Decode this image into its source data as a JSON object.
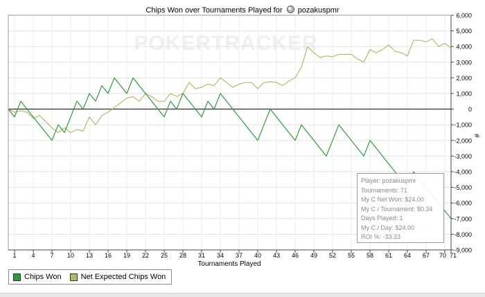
{
  "chart_data": {
    "type": "line",
    "title": "Chips Won over Tournaments Played for pozakuspmr",
    "title_prefix": "Chips Won over Tournaments Played for",
    "player": "pozakuspmr",
    "watermark": "POKERTRACKER",
    "xlabel": "Tournaments Played",
    "ylabel": "#",
    "x_ticks": [
      "1",
      "4",
      "7",
      "10",
      "13",
      "16",
      "19",
      "22",
      "25",
      "28",
      "31",
      "34",
      "37",
      "40",
      "43",
      "46",
      "49",
      "52",
      "55",
      "58",
      "61",
      "64",
      "67",
      "70",
      "71"
    ],
    "xlim": [
      0,
      71
    ],
    "ylim": [
      -9000,
      6000
    ],
    "y_ticks": [
      "6,000",
      "5,000",
      "4,000",
      "3,000",
      "2,000",
      "1,000",
      "0",
      "-1,000",
      "-2,000",
      "-3,000",
      "-4,000",
      "-5,000",
      "-6,000",
      "-7,000",
      "-8,000",
      "-9,000"
    ],
    "y_tick_values": [
      6000,
      5000,
      4000,
      3000,
      2000,
      1000,
      0,
      -1000,
      -2000,
      -3000,
      -4000,
      -5000,
      -6000,
      -7000,
      -8000,
      -9000
    ],
    "grid": true,
    "legend_position": "bottom-left",
    "colors": {
      "chips_won": "#2e9b3a",
      "net_expected": "#b5b86a",
      "zero_line": "#000000"
    },
    "series": [
      {
        "name": "Chips Won",
        "x": [
          0,
          1,
          2,
          3,
          4,
          5,
          6,
          7,
          8,
          9,
          10,
          11,
          12,
          13,
          14,
          15,
          16,
          17,
          18,
          19,
          20,
          21,
          22,
          23,
          24,
          25,
          26,
          27,
          28,
          29,
          30,
          31,
          32,
          33,
          34,
          35,
          36,
          37,
          38,
          39,
          40,
          41,
          42,
          43,
          44,
          45,
          46,
          47,
          48,
          49,
          50,
          51,
          52,
          53,
          54,
          55,
          56,
          57,
          58,
          59,
          60,
          61,
          62,
          63,
          64,
          65,
          66,
          67,
          68,
          69,
          70,
          71
        ],
        "values": [
          0,
          -500,
          500,
          0,
          -500,
          -1000,
          -1500,
          -2000,
          -1000,
          -1500,
          -500,
          500,
          0,
          1000,
          500,
          1500,
          1000,
          2000,
          1500,
          1000,
          2000,
          1500,
          1000,
          500,
          0,
          -500,
          500,
          0,
          1000,
          500,
          0,
          -500,
          500,
          0,
          1000,
          500,
          0,
          -500,
          -1000,
          -1500,
          -2000,
          -1000,
          0,
          -500,
          -1000,
          -1500,
          -2000,
          -1000,
          -1500,
          -2000,
          -2500,
          -3000,
          -2000,
          -1000,
          -1500,
          -2000,
          -2500,
          -3000,
          -2000,
          -2500,
          -3000,
          -3500,
          -4000,
          -4500,
          -5000,
          -4000,
          -4500,
          -5000,
          -5500,
          -6000,
          -6500,
          -7000
        ]
      },
      {
        "name": "Net Expected Chips Won",
        "x": [
          0,
          1,
          2,
          3,
          4,
          5,
          6,
          7,
          8,
          9,
          10,
          11,
          12,
          13,
          14,
          15,
          16,
          17,
          18,
          19,
          20,
          21,
          22,
          23,
          24,
          25,
          26,
          27,
          28,
          29,
          30,
          31,
          32,
          33,
          34,
          35,
          36,
          37,
          38,
          39,
          40,
          41,
          42,
          43,
          44,
          45,
          46,
          47,
          48,
          49,
          50,
          51,
          52,
          53,
          54,
          55,
          56,
          57,
          58,
          59,
          60,
          61,
          62,
          63,
          64,
          65,
          66,
          67,
          68,
          69,
          70,
          71
        ],
        "values": [
          0,
          -200,
          -100,
          -200,
          -600,
          -400,
          -800,
          -1200,
          -1500,
          -1200,
          -1500,
          -1300,
          -1400,
          -500,
          -1000,
          -400,
          -200,
          100,
          400,
          700,
          800,
          500,
          1000,
          800,
          500,
          500,
          1000,
          800,
          1000,
          1700,
          1300,
          1400,
          1600,
          1500,
          2000,
          1700,
          1400,
          1600,
          1700,
          1700,
          1300,
          1700,
          1750,
          1700,
          1500,
          1800,
          2000,
          2700,
          4000,
          3600,
          3300,
          3400,
          3350,
          3500,
          3500,
          3500,
          3200,
          3000,
          3800,
          3600,
          3800,
          4100,
          3700,
          3600,
          3400,
          4400,
          4400,
          4300,
          4500,
          4000,
          4200,
          3900
        ]
      }
    ]
  },
  "legend": {
    "items": [
      "Chips Won",
      "Net Expected Chips Won"
    ]
  },
  "tooltip": {
    "player": "Player: pozakuspmr",
    "tournaments": "Tournaments: 71",
    "net_won": "My C Net Won: $24.00",
    "per_tournament": "My C / Tournament: $0.34",
    "days_played": "Days Played: 1",
    "per_day": "My C / Day: $24.00",
    "roi": "ROI %: -33.33"
  }
}
